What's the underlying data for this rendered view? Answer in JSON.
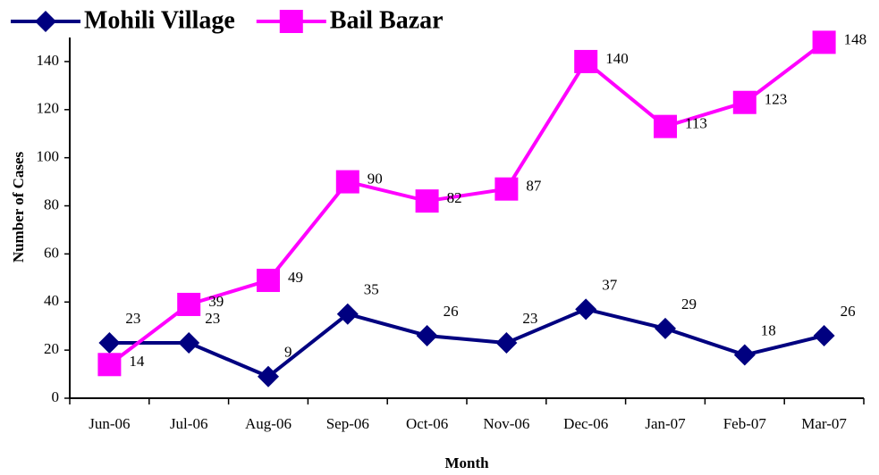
{
  "chart_data": {
    "type": "line",
    "x_label": "Month",
    "y_label": "Number of Cases",
    "categories": [
      "Jun-06",
      "Jul-06",
      "Aug-06",
      "Sep-06",
      "Oct-06",
      "Nov-06",
      "Dec-06",
      "Jan-07",
      "Feb-07",
      "Mar-07"
    ],
    "series": [
      {
        "name": "Mohili Village",
        "color": "#000080",
        "marker": "diamond",
        "values": [
          23,
          23,
          9,
          35,
          26,
          23,
          37,
          29,
          18,
          26
        ]
      },
      {
        "name": "Bail Bazar",
        "color": "#ff00ff",
        "marker": "square",
        "values": [
          14,
          39,
          49,
          90,
          82,
          87,
          140,
          113,
          123,
          148
        ]
      }
    ],
    "ylim": [
      0,
      150
    ],
    "yticks": [
      0,
      20,
      40,
      60,
      80,
      100,
      120,
      140
    ],
    "grid": false,
    "legend": "top"
  }
}
